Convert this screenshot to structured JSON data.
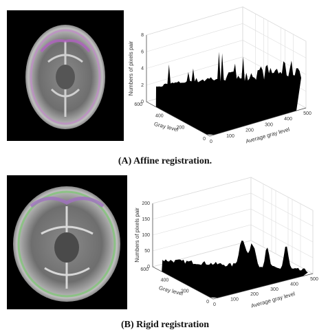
{
  "panels": [
    {
      "caption": "(A) Affine registration.",
      "z_label": "Numbers of pixels pair",
      "y_label": "Gray level",
      "x_label": "Average gray level",
      "z_ticks": [
        0,
        2,
        4,
        6,
        8
      ],
      "y_ticks": [
        0,
        200,
        400,
        600
      ],
      "x_ticks": [
        0,
        100,
        200,
        300,
        400,
        500
      ]
    },
    {
      "caption": "(B) Rigid registration",
      "z_label": "Numbers of pixels pair",
      "y_label": "Gray level",
      "x_label": "Average gray level",
      "z_ticks": [
        0,
        50,
        100,
        150,
        200
      ],
      "y_ticks": [
        0,
        200,
        400,
        600
      ],
      "x_ticks": [
        0,
        100,
        200,
        300,
        400,
        500
      ]
    }
  ]
}
